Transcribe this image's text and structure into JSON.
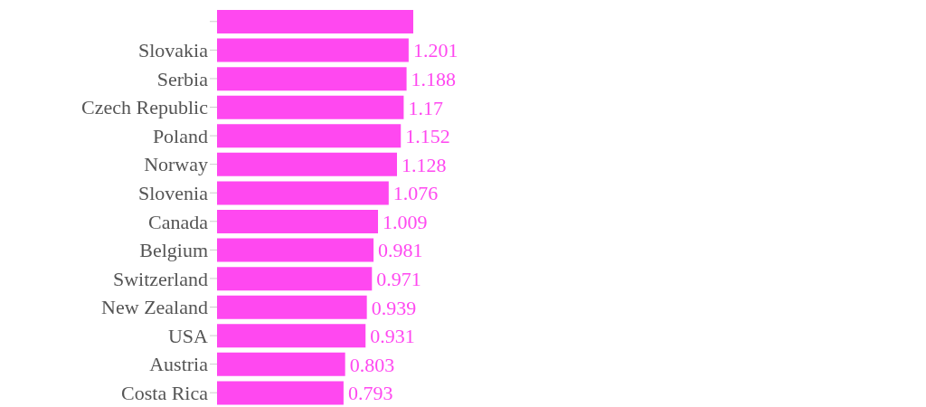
{
  "chart_data": {
    "type": "bar",
    "orientation": "horizontal",
    "categories": [
      null,
      "Slovakia",
      "Serbia",
      "Czech Republic",
      "Poland",
      "Norway",
      "Slovenia",
      "Canada",
      "Belgium",
      "Switzerland",
      "New Zealand",
      "USA",
      "Austria",
      "Costa Rica"
    ],
    "values": [
      1.23,
      1.201,
      1.188,
      1.17,
      1.152,
      1.128,
      1.076,
      1.009,
      0.981,
      0.971,
      0.939,
      0.931,
      0.803,
      0.793
    ],
    "value_labels": [
      null,
      "1.201",
      "1.188",
      "1.17",
      "1.152",
      "1.128",
      "1.076",
      "1.009",
      "0.981",
      "0.971",
      "0.939",
      "0.931",
      "0.803",
      "0.793"
    ],
    "color": "#ff48f0",
    "grid": false,
    "legend": false
  }
}
